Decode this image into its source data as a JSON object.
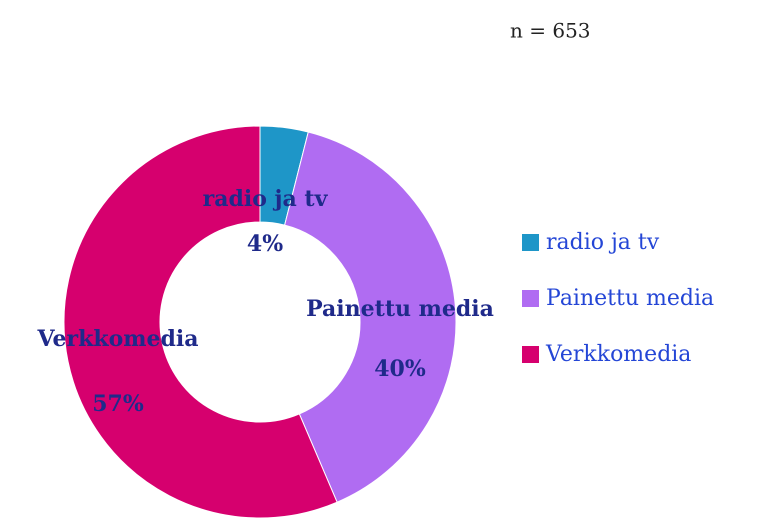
{
  "chart_data": {
    "type": "donut",
    "annotation": "n = 653",
    "categories": [
      "radio ja tv",
      "Painettu media",
      "Verkkomedia"
    ],
    "values": [
      4,
      40,
      57
    ],
    "value_labels": [
      "4%",
      "40%",
      "57%"
    ],
    "colors": [
      "#1e96c8",
      "#b06cf2",
      "#d6006e"
    ],
    "legend": "right"
  }
}
